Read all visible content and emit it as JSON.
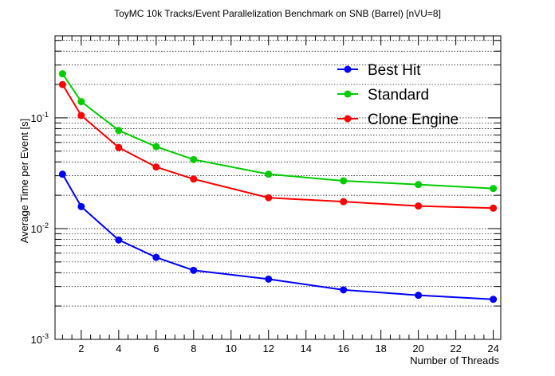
{
  "chart_data": {
    "type": "line",
    "title": "ToyMC 10k Tracks/Event Parallelization Benchmark on SNB (Barrel) [nVU=8]",
    "xlabel": "Number of Threads",
    "ylabel": "Average Time per Event [s]",
    "xlim": [
      0.6,
      24.4
    ],
    "ylim": [
      0.001,
      0.55
    ],
    "yscale": "log",
    "grid": "y-major-and-minor-dotted",
    "legend_position": "top-right",
    "x": [
      1,
      2,
      4,
      6,
      8,
      12,
      16,
      20,
      24
    ],
    "x_ticks": [
      2,
      4,
      6,
      8,
      10,
      12,
      14,
      16,
      18,
      20,
      22,
      24
    ],
    "y_ticks": [
      {
        "value": 0.001,
        "base": "10",
        "exp": "-3"
      },
      {
        "value": 0.01,
        "base": "10",
        "exp": "-2"
      },
      {
        "value": 0.1,
        "base": "10",
        "exp": "-1"
      }
    ],
    "series": [
      {
        "name": "Best Hit",
        "color": "#0000ff",
        "values": [
          0.031,
          0.0158,
          0.0079,
          0.0055,
          0.0042,
          0.0035,
          0.0028,
          0.0025,
          0.0023
        ]
      },
      {
        "name": "Standard",
        "color": "#00cc00",
        "values": [
          0.25,
          0.14,
          0.077,
          0.055,
          0.042,
          0.031,
          0.027,
          0.025,
          0.023
        ]
      },
      {
        "name": "Clone Engine",
        "color": "#ff0000",
        "values": [
          0.2,
          0.105,
          0.054,
          0.036,
          0.028,
          0.019,
          0.0175,
          0.016,
          0.0153
        ]
      }
    ]
  }
}
